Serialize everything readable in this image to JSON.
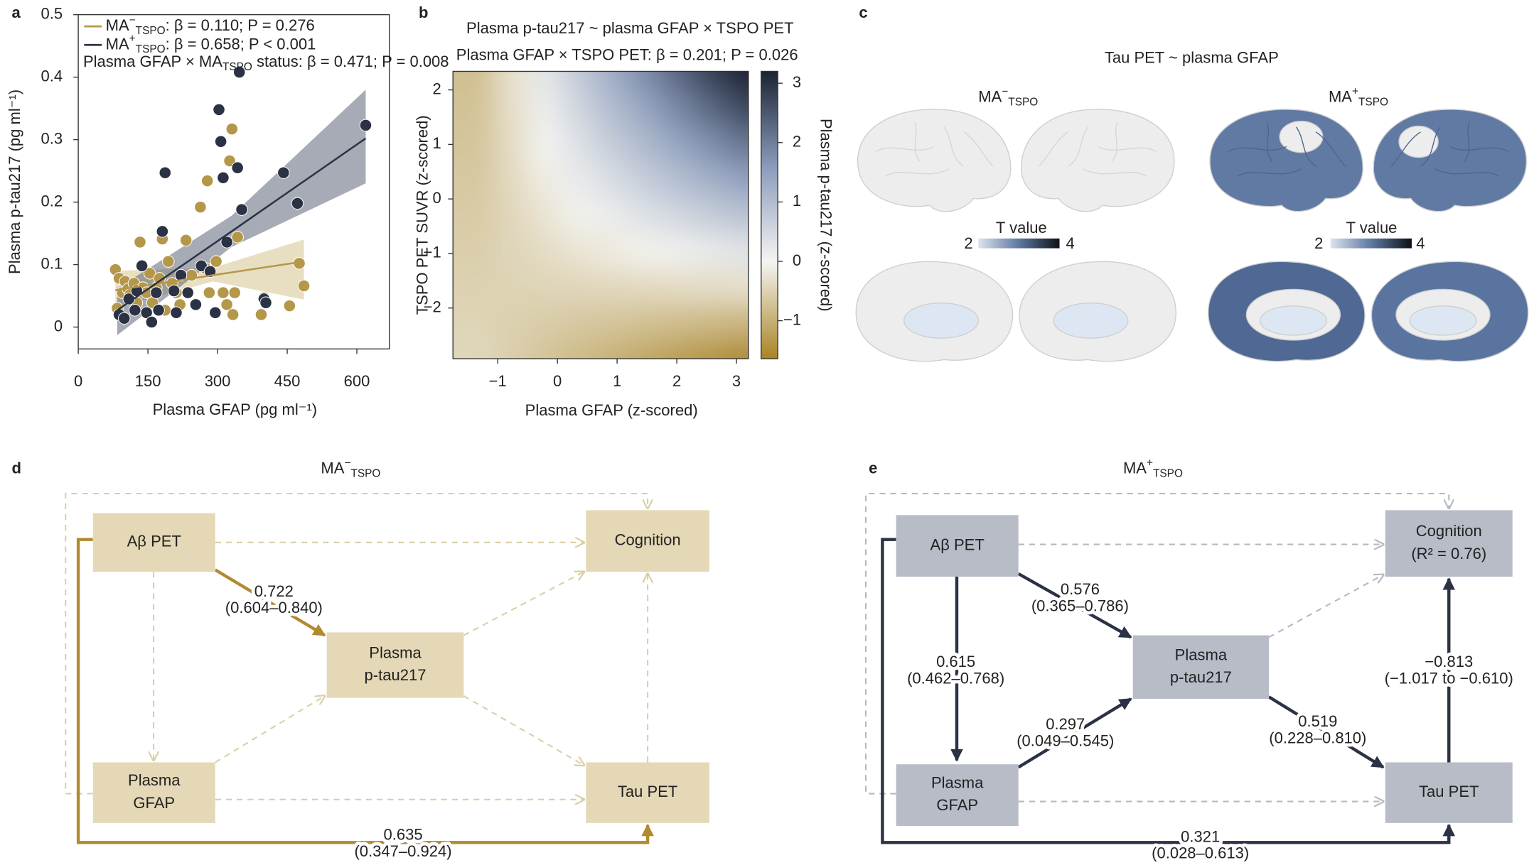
{
  "panel_labels": [
    "a",
    "b",
    "c",
    "d",
    "e"
  ],
  "chart_data": [
    {
      "type": "scatter",
      "x_label": "Plasma GFAP (pg ml⁻¹)",
      "y_label": "Plasma p-tau217 (pg ml⁻¹)",
      "xlim": [
        0,
        670
      ],
      "ylim": [
        -0.035,
        0.5
      ],
      "xticks": [
        0,
        150,
        300,
        450,
        600
      ],
      "yticks": [
        0,
        0.1,
        0.2,
        0.3,
        0.4,
        0.5
      ],
      "interaction": [
        "Plasma GFAP × MA",
        "TSPO",
        " status: β = 0.471; P = 0.008"
      ],
      "series": [
        {
          "name": [
            "MA",
            "−",
            "TSPO"
          ],
          "stat": ": β = 0.110; P = 0.276",
          "color": "#b5974a",
          "band_color": "#d6c58f",
          "x": [
            80,
            88,
            95,
            101,
            107,
            112,
            120,
            126,
            133,
            139,
            147,
            154,
            160,
            168,
            175,
            181,
            187,
            194,
            202,
            211,
            219,
            232,
            244,
            263,
            274,
            282,
            297,
            312,
            320,
            331,
            337,
            343,
            333,
            394,
            400,
            455,
            476,
            486,
            84,
            326,
            278
          ],
          "values": [
            0.092,
            0.078,
            0.055,
            0.073,
            0.061,
            0.052,
            0.07,
            0.039,
            0.136,
            0.063,
            0.055,
            0.086,
            0.039,
            0.063,
            0.078,
            0.141,
            0.027,
            0.105,
            0.07,
            0.055,
            0.036,
            0.139,
            0.083,
            0.192,
            0.094,
            0.055,
            0.105,
            0.055,
            0.036,
            0.317,
            0.055,
            0.144,
            0.02,
            0.02,
            0.047,
            0.034,
            0.102,
            0.066,
            0.03,
            0.266,
            0.234
          ],
          "fit": {
            "x": [
              80,
              290,
              486
            ],
            "y": [
              0.059,
              0.083,
              0.105
            ],
            "lower": [
              0.03,
              0.073,
              0.044
            ],
            "upper": [
              0.09,
              0.095,
              0.14
            ]
          }
        },
        {
          "name": [
            "MA",
            "+",
            "TSPO"
          ],
          "stat": ": β = 0.658; P < 0.001",
          "color": "#2b3245",
          "band_color": "#5d6678",
          "x": [
            88,
            99,
            109,
            122,
            137,
            147,
            158,
            173,
            181,
            187,
            206,
            221,
            236,
            253,
            265,
            284,
            303,
            307,
            312,
            320,
            343,
            347,
            352,
            400,
            404,
            442,
            472,
            619,
            126,
            168,
            211,
            295
          ],
          "values": [
            0.02,
            0.014,
            0.045,
            0.027,
            0.098,
            0.023,
            0.008,
            0.027,
            0.153,
            0.247,
            0.058,
            0.083,
            0.055,
            0.036,
            0.098,
            0.089,
            0.348,
            0.297,
            0.239,
            0.136,
            0.255,
            0.408,
            0.188,
            0.045,
            0.039,
            0.247,
            0.198,
            0.323,
            0.058,
            0.055,
            0.023,
            0.023
          ],
          "fit": {
            "x": [
              84,
              330,
              619
            ],
            "y": [
              0.027,
              0.153,
              0.302
            ],
            "lower": [
              -0.013,
              0.128,
              0.23
            ],
            "upper": [
              0.062,
              0.178,
              0.38
            ]
          }
        }
      ]
    },
    {
      "type": "heatmap",
      "title": "Plasma p-tau217 ~ plasma GFAP × TSPO PET",
      "subtitle": "Plasma GFAP × TSPO PET: β = 0.201; P = 0.026",
      "x_label": "Plasma GFAP (z-scored)",
      "y_label": "TSPO PET SUVR (z-scored)",
      "colorbar_label": "Plasma p-tau217 (z-scored)",
      "xlim": [
        -1.75,
        3.2
      ],
      "ylim": [
        -2.93,
        2.34
      ],
      "zlim": [
        -1.64,
        3.2
      ],
      "xticks": [
        {
          "value": -1,
          "label": "−1"
        },
        0,
        1,
        2,
        3
      ],
      "yticks": [
        {
          "value": -2,
          "label": "−2"
        },
        {
          "value": -1,
          "label": "−1"
        },
        0,
        1,
        2
      ],
      "zticks": [
        {
          "value": -1,
          "label": "−1"
        },
        0,
        1,
        2,
        3
      ],
      "color_stops": [
        [
          -1.64,
          "#a98424"
        ],
        [
          0,
          "#f4f4f1"
        ],
        [
          1.6,
          "#8a9bbb"
        ],
        [
          3.2,
          "#1c2434"
        ]
      ],
      "x": [
        -1.3,
        -0.75,
        -0.2,
        0.35,
        0.9,
        1.45,
        2.0,
        2.55,
        3.1
      ],
      "y": [
        -2.9,
        -2.25,
        -1.6,
        -0.95,
        -0.3,
        0.35,
        1.0,
        1.65,
        2.3
      ],
      "z": [
        [
          -0.43,
          -0.56,
          -0.7,
          -0.84,
          -0.97,
          -1.11,
          -1.25,
          -1.38,
          -1.52
        ],
        [
          -0.47,
          -0.53,
          -0.58,
          -0.64,
          -0.69,
          -0.75,
          -0.81,
          -0.86,
          -0.92
        ],
        [
          -0.51,
          -0.49,
          -0.46,
          -0.44,
          -0.41,
          -0.39,
          -0.36,
          -0.34,
          -0.31
        ],
        [
          -0.56,
          -0.45,
          -0.35,
          -0.24,
          -0.14,
          -0.03,
          0.08,
          0.18,
          0.29
        ],
        [
          -0.6,
          -0.42,
          -0.23,
          -0.04,
          0.14,
          0.33,
          0.52,
          0.7,
          0.89
        ],
        [
          -0.65,
          -0.38,
          -0.11,
          0.16,
          0.42,
          0.69,
          0.96,
          1.23,
          1.49
        ],
        [
          -0.69,
          -0.34,
          0.01,
          0.35,
          0.7,
          1.05,
          1.4,
          1.75,
          2.09
        ],
        [
          -0.73,
          -0.31,
          0.12,
          0.55,
          0.98,
          1.41,
          1.84,
          2.27,
          2.7
        ],
        [
          -0.78,
          -0.27,
          0.24,
          0.75,
          1.26,
          1.77,
          2.28,
          2.79,
          3.3
        ]
      ]
    }
  ],
  "brain": {
    "title": "Tau PET ~ plasma GFAP",
    "groups": [
      {
        "name": [
          "MA",
          "−",
          "TSPO"
        ]
      },
      {
        "name": [
          "MA",
          "+",
          "TSPO"
        ]
      }
    ],
    "colorbar": {
      "label": "T value",
      "ticks": [
        "2",
        "4"
      ]
    }
  },
  "diagrams": [
    {
      "title": [
        "MA",
        "−",
        "TSPO"
      ],
      "nodes": [
        {
          "label": [
            "Aβ PET"
          ]
        },
        {
          "label": [
            "Cognition"
          ]
        },
        {
          "label": [
            "Plasma",
            "p-tau217"
          ]
        },
        {
          "label": [
            "Plasma",
            "GFAP"
          ]
        },
        {
          "label": [
            "Tau PET"
          ]
        }
      ],
      "edges": [
        {
          "value": "0.722",
          "ci": "(0.604–0.840)"
        },
        {
          "value": "0.635",
          "ci": "(0.347–0.924)"
        }
      ]
    },
    {
      "title": [
        "MA",
        "+",
        "TSPO"
      ],
      "nodes": [
        {
          "label": [
            "Aβ PET"
          ]
        },
        {
          "label": [
            "Cognition",
            "(R² = 0.76)"
          ]
        },
        {
          "label": [
            "Plasma",
            "p-tau217"
          ]
        },
        {
          "label": [
            "Plasma",
            "GFAP"
          ]
        },
        {
          "label": [
            "Tau PET"
          ]
        }
      ],
      "edges": [
        {
          "value": "0.615",
          "ci": "(0.462–0.768)"
        },
        {
          "value": "0.576",
          "ci": "(0.365–0.786)"
        },
        {
          "value": "0.297",
          "ci": "(0.049–0.545)"
        },
        {
          "value": "0.519",
          "ci": "(0.228–0.810)"
        },
        {
          "value": "−0.813",
          "ci": "(−1.017 to −0.610)"
        },
        {
          "value": "0.321",
          "ci": "(0.028–0.613)"
        }
      ]
    }
  ]
}
